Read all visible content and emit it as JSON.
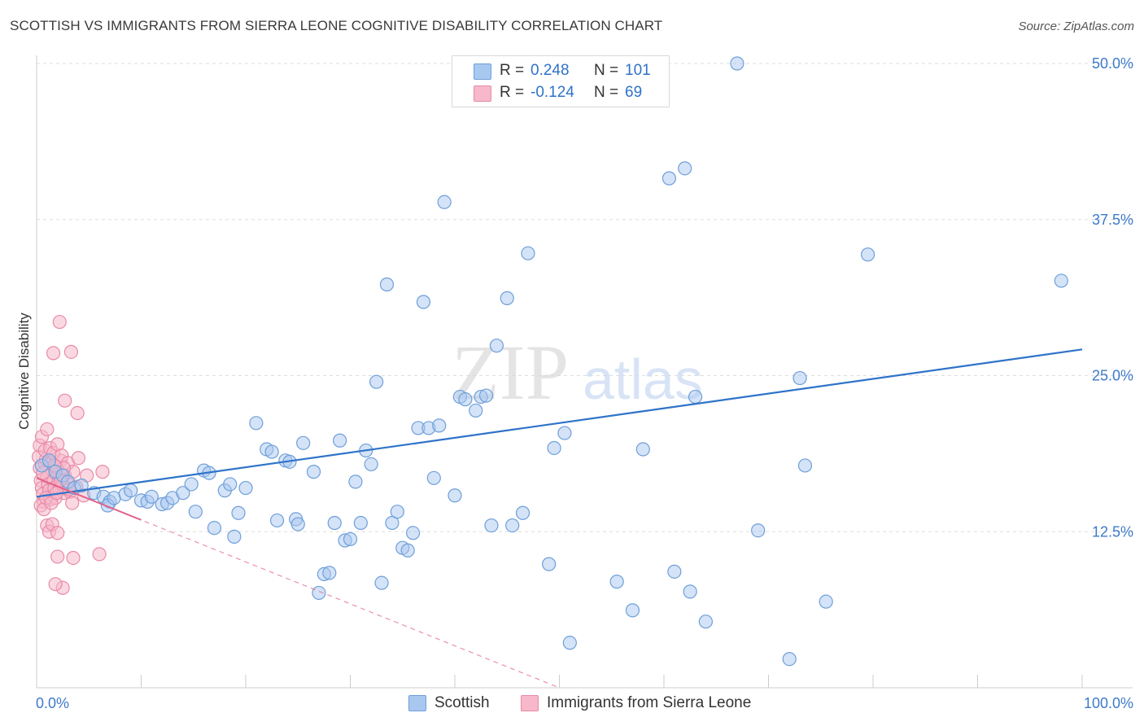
{
  "title": "SCOTTISH VS IMMIGRANTS FROM SIERRA LEONE COGNITIVE DISABILITY CORRELATION CHART",
  "source": "Source: ZipAtlas.com",
  "watermark": {
    "zip": "ZIP",
    "atlas": "atlas"
  },
  "legend": {
    "rows": [
      {
        "r_label": "R =",
        "r_value": "0.248",
        "n_label": "N =",
        "n_value": "101"
      },
      {
        "r_label": "R =",
        "r_value": "-0.124",
        "n_label": "N =",
        "n_value": "69"
      }
    ]
  },
  "bottom_legend": {
    "scottish": "Scottish",
    "sierra": "Immigrants from Sierra Leone"
  },
  "colors": {
    "blue_fill": "#a9c8f0",
    "blue_stroke": "#6e9fd9",
    "blue_line": "#2f73c9",
    "pink_fill": "#f6b8ca",
    "pink_stroke": "#e98aa6",
    "pink_line": "#e0638a",
    "tick_label": "#3d7ac9",
    "grid": "#dddddd"
  },
  "chart_data": {
    "type": "scatter",
    "title": "SCOTTISH VS IMMIGRANTS FROM SIERRA LEONE COGNITIVE DISABILITY CORRELATION CHART",
    "xlabel": "",
    "ylabel": "Cognitive Disability",
    "xlim": [
      0,
      100
    ],
    "ylim": [
      0,
      50
    ],
    "x_tick_labels": [
      "0.0%",
      "100.0%"
    ],
    "y_ticks": [
      12.5,
      25.0,
      37.5,
      50.0
    ],
    "y_tick_labels": [
      "12.5%",
      "25.0%",
      "37.5%",
      "50.0%"
    ],
    "grid": true,
    "legend_position": "top-center",
    "series": [
      {
        "name": "Scottish",
        "color": "#a9c8f0",
        "trend": {
          "x": [
            0,
            100
          ],
          "y": [
            15.3,
            27.1
          ],
          "style": "solid"
        },
        "points": [
          [
            0.5,
            17.8
          ],
          [
            1.2,
            18.2
          ],
          [
            1.8,
            17.3
          ],
          [
            2.5,
            17.0
          ],
          [
            3.0,
            16.5
          ],
          [
            3.6,
            16.0
          ],
          [
            4.3,
            16.2
          ],
          [
            5.5,
            15.6
          ],
          [
            6.4,
            15.3
          ],
          [
            7.0,
            14.9
          ],
          [
            6.8,
            14.6
          ],
          [
            7.4,
            15.2
          ],
          [
            8.5,
            15.5
          ],
          [
            9.0,
            15.8
          ],
          [
            10.0,
            15.0
          ],
          [
            10.6,
            14.9
          ],
          [
            11.0,
            15.3
          ],
          [
            12.0,
            14.7
          ],
          [
            12.5,
            14.8
          ],
          [
            13.0,
            15.2
          ],
          [
            14.0,
            15.6
          ],
          [
            14.8,
            16.3
          ],
          [
            15.2,
            14.1
          ],
          [
            16.0,
            17.4
          ],
          [
            16.5,
            17.2
          ],
          [
            17.0,
            12.8
          ],
          [
            18.0,
            15.8
          ],
          [
            18.5,
            16.3
          ],
          [
            18.9,
            12.1
          ],
          [
            19.3,
            14.0
          ],
          [
            20.0,
            16.0
          ],
          [
            21.0,
            21.2
          ],
          [
            22.0,
            19.1
          ],
          [
            22.5,
            18.9
          ],
          [
            23.0,
            13.4
          ],
          [
            23.8,
            18.2
          ],
          [
            24.2,
            18.1
          ],
          [
            24.8,
            13.5
          ],
          [
            25.5,
            19.6
          ],
          [
            25.0,
            13.1
          ],
          [
            26.5,
            17.3
          ],
          [
            27.0,
            7.6
          ],
          [
            27.5,
            9.1
          ],
          [
            28.0,
            9.2
          ],
          [
            28.5,
            13.2
          ],
          [
            29.0,
            19.8
          ],
          [
            29.5,
            11.8
          ],
          [
            30.0,
            11.9
          ],
          [
            30.5,
            16.5
          ],
          [
            31.5,
            19.0
          ],
          [
            31.0,
            13.2
          ],
          [
            32.0,
            17.9
          ],
          [
            32.5,
            24.5
          ],
          [
            33.0,
            8.4
          ],
          [
            33.5,
            32.3
          ],
          [
            34.0,
            13.2
          ],
          [
            34.5,
            14.1
          ],
          [
            35.0,
            11.2
          ],
          [
            35.5,
            11.0
          ],
          [
            36.0,
            12.4
          ],
          [
            36.5,
            20.8
          ],
          [
            37.0,
            30.9
          ],
          [
            37.5,
            20.8
          ],
          [
            38.0,
            16.8
          ],
          [
            38.5,
            21.0
          ],
          [
            39.0,
            38.9
          ],
          [
            40.0,
            15.4
          ],
          [
            40.5,
            23.3
          ],
          [
            41.0,
            23.1
          ],
          [
            42.0,
            22.2
          ],
          [
            42.5,
            23.3
          ],
          [
            43.0,
            23.4
          ],
          [
            43.5,
            13.0
          ],
          [
            44.0,
            27.4
          ],
          [
            44.5,
            48.1
          ],
          [
            45.0,
            31.2
          ],
          [
            45.5,
            13.0
          ],
          [
            46.5,
            14.0
          ],
          [
            47.0,
            34.8
          ],
          [
            49.5,
            19.2
          ],
          [
            49.0,
            9.9
          ],
          [
            50.5,
            20.4
          ],
          [
            51.0,
            3.6
          ],
          [
            53.0,
            47.2
          ],
          [
            55.5,
            8.5
          ],
          [
            57.0,
            6.2
          ],
          [
            58.0,
            19.1
          ],
          [
            60.5,
            40.8
          ],
          [
            61.0,
            9.3
          ],
          [
            62.0,
            41.6
          ],
          [
            62.5,
            7.7
          ],
          [
            63.0,
            23.3
          ],
          [
            64.0,
            5.3
          ],
          [
            67.0,
            50.0
          ],
          [
            69.0,
            12.6
          ],
          [
            72.0,
            2.3
          ],
          [
            73.0,
            24.8
          ],
          [
            73.5,
            17.8
          ],
          [
            75.5,
            6.9
          ],
          [
            79.5,
            34.7
          ],
          [
            98.0,
            32.6
          ]
        ]
      },
      {
        "name": "Immigrants from Sierra Leone",
        "color": "#f6b8ca",
        "trend": {
          "x": [
            0,
            50
          ],
          "y": [
            16.8,
            0.0
          ],
          "style": "dashed"
        },
        "points": [
          [
            0.2,
            18.5
          ],
          [
            0.3,
            17.6
          ],
          [
            0.4,
            16.6
          ],
          [
            0.5,
            16.0
          ],
          [
            0.6,
            15.5
          ],
          [
            0.7,
            14.9
          ],
          [
            0.8,
            17.9
          ],
          [
            0.9,
            18.3
          ],
          [
            1.0,
            16.9
          ],
          [
            1.1,
            16.3
          ],
          [
            1.2,
            15.8
          ],
          [
            1.3,
            15.1
          ],
          [
            1.4,
            18.0
          ],
          [
            1.5,
            17.4
          ],
          [
            1.6,
            16.6
          ],
          [
            1.7,
            16.0
          ],
          [
            1.8,
            15.2
          ],
          [
            1.9,
            17.7
          ],
          [
            2.0,
            17.1
          ],
          [
            2.1,
            16.5
          ],
          [
            2.2,
            15.9
          ],
          [
            2.3,
            18.2
          ],
          [
            2.4,
            16.8
          ],
          [
            2.5,
            16.2
          ],
          [
            2.6,
            15.6
          ],
          [
            2.7,
            17.0
          ],
          [
            2.8,
            16.0
          ],
          [
            0.3,
            19.4
          ],
          [
            0.5,
            20.1
          ],
          [
            0.8,
            19.0
          ],
          [
            1.0,
            20.7
          ],
          [
            1.3,
            19.2
          ],
          [
            1.6,
            18.8
          ],
          [
            2.0,
            19.5
          ],
          [
            2.4,
            18.6
          ],
          [
            0.4,
            14.6
          ],
          [
            0.7,
            14.3
          ],
          [
            1.0,
            13.0
          ],
          [
            1.2,
            12.5
          ],
          [
            1.5,
            13.1
          ],
          [
            2.0,
            12.4
          ],
          [
            2.5,
            8.0
          ],
          [
            2.0,
            10.5
          ],
          [
            1.8,
            8.3
          ],
          [
            3.5,
            10.4
          ],
          [
            1.6,
            26.8
          ],
          [
            2.2,
            29.3
          ],
          [
            3.3,
            26.9
          ],
          [
            2.7,
            23.0
          ],
          [
            3.9,
            22.0
          ],
          [
            3.0,
            18.0
          ],
          [
            3.5,
            17.3
          ],
          [
            3.8,
            16.1
          ],
          [
            3.2,
            15.7
          ],
          [
            4.5,
            15.4
          ],
          [
            3.4,
            14.8
          ],
          [
            4.8,
            17.0
          ],
          [
            4.0,
            18.4
          ],
          [
            6.3,
            17.3
          ],
          [
            6.0,
            10.7
          ],
          [
            0.9,
            15.2
          ],
          [
            1.4,
            14.8
          ],
          [
            1.9,
            15.6
          ],
          [
            2.6,
            17.6
          ],
          [
            2.9,
            16.4
          ],
          [
            0.6,
            17.2
          ],
          [
            1.7,
            17.8
          ],
          [
            2.3,
            16.6
          ],
          [
            3.1,
            15.9
          ]
        ]
      }
    ]
  }
}
